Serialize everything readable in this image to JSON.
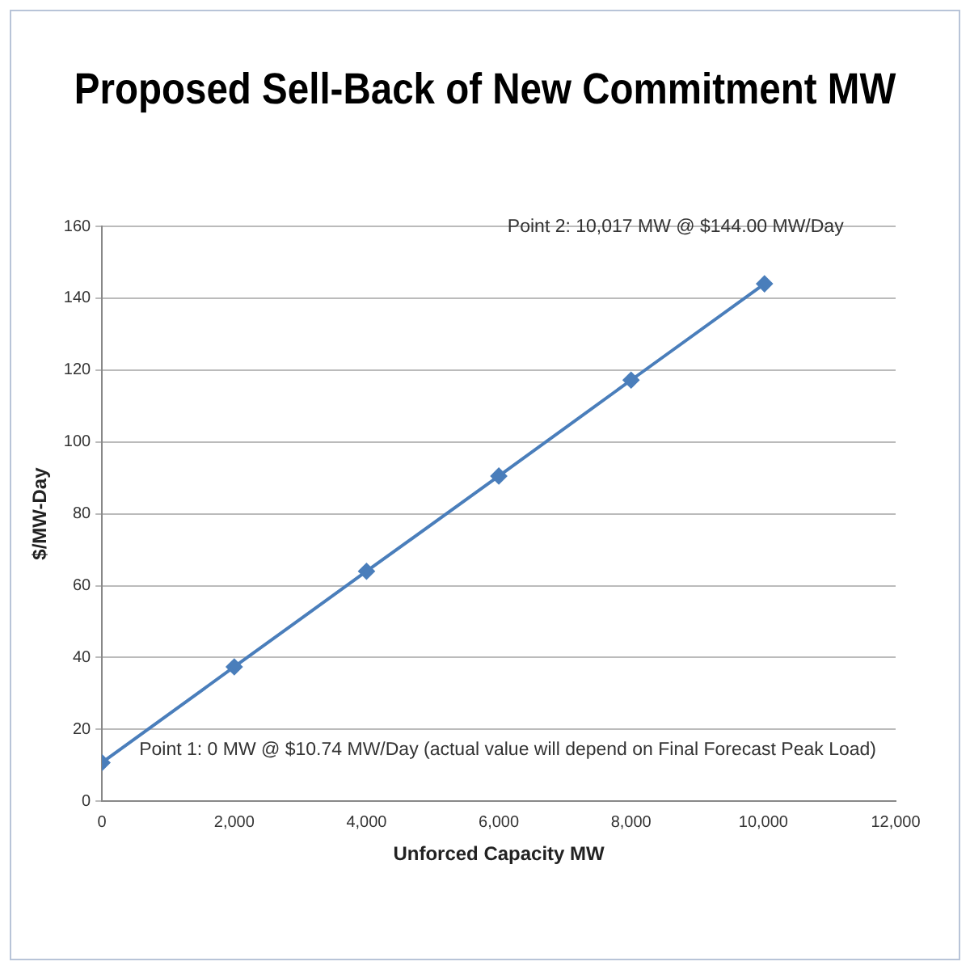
{
  "chart_data": {
    "type": "line",
    "title": "Proposed Sell-Back of New Commitment MW",
    "xlabel": "Unforced Capacity MW",
    "ylabel": "$/MW-Day",
    "x": [
      0,
      2000,
      4000,
      6000,
      8000,
      10017
    ],
    "series": [
      {
        "color": "#4a7ebb",
        "values": [
          10.74,
          37.4,
          64,
          90.5,
          117.2,
          144
        ]
      }
    ],
    "xlim": [
      0,
      12000
    ],
    "xticks": [
      0,
      {
        "value": 2000,
        "label": "2,000"
      },
      {
        "value": 4000,
        "label": "4,000"
      },
      {
        "value": 6000,
        "label": "6,000"
      },
      {
        "value": 8000,
        "label": "8,000"
      },
      {
        "value": 10000,
        "label": "10,000"
      },
      {
        "value": 12000,
        "label": "12,000"
      }
    ],
    "ylim": [
      0,
      160
    ],
    "yticks": [
      0,
      20,
      40,
      60,
      80,
      100,
      120,
      140,
      160
    ],
    "grid": "y",
    "marker": "diamond",
    "line_style": "solid",
    "legend": false,
    "annotations": [
      {
        "text": "Point 1: 0 MW @ $10.74 MW/Day (actual value will depend on Final Forecast Peak Load)",
        "x": 0,
        "y": 10.74
      },
      {
        "text": "Point 2: 10,017 MW @ $144.00 MW/Day",
        "x": 10017,
        "y": 144
      }
    ]
  }
}
